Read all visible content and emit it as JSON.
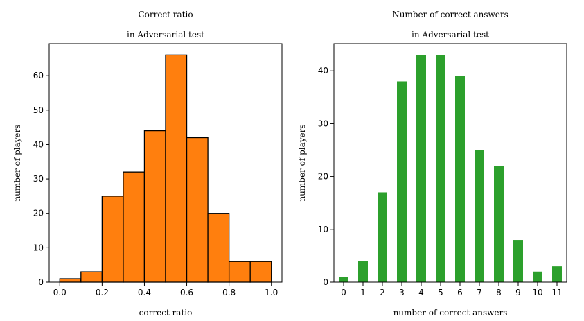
{
  "chart_data": [
    {
      "type": "histogram",
      "title": [
        "Correct ratio",
        "in Adversarial test"
      ],
      "xlabel": "correct ratio",
      "ylabel": "number of players",
      "bins": [
        0,
        0.1,
        0.2,
        0.3,
        0.4,
        0.5,
        0.6,
        0.7,
        0.8,
        0.9,
        1.0
      ],
      "counts": [
        1,
        3,
        25,
        32,
        44,
        66,
        42,
        20,
        6,
        6
      ],
      "color": "#ff7f0e",
      "edgecolor": "#000000",
      "xlim": [
        -0.05,
        1.05
      ],
      "xticks": [
        {
          "value": 0,
          "label": "0.0"
        },
        0.2,
        0.4,
        0.6,
        0.8,
        {
          "value": 1,
          "label": "1.0"
        }
      ],
      "ylim": [
        0,
        69.3
      ],
      "yticks": [
        0,
        10,
        20,
        30,
        40,
        50,
        60
      ]
    },
    {
      "type": "bar",
      "title": [
        "Number of correct answers",
        "in Adversarial test"
      ],
      "xlabel": "number of correct answers",
      "ylabel": "number of players",
      "categories": [
        "0",
        "1",
        "2",
        "3",
        "4",
        "5",
        "6",
        "7",
        "8",
        "9",
        "10",
        "11"
      ],
      "values": [
        1,
        4,
        17,
        38,
        43,
        43,
        39,
        25,
        22,
        8,
        2,
        3
      ],
      "color": "#2ca02c",
      "ylim": [
        0,
        45.15
      ],
      "yticks": [
        0,
        10,
        20,
        30,
        40
      ]
    }
  ]
}
